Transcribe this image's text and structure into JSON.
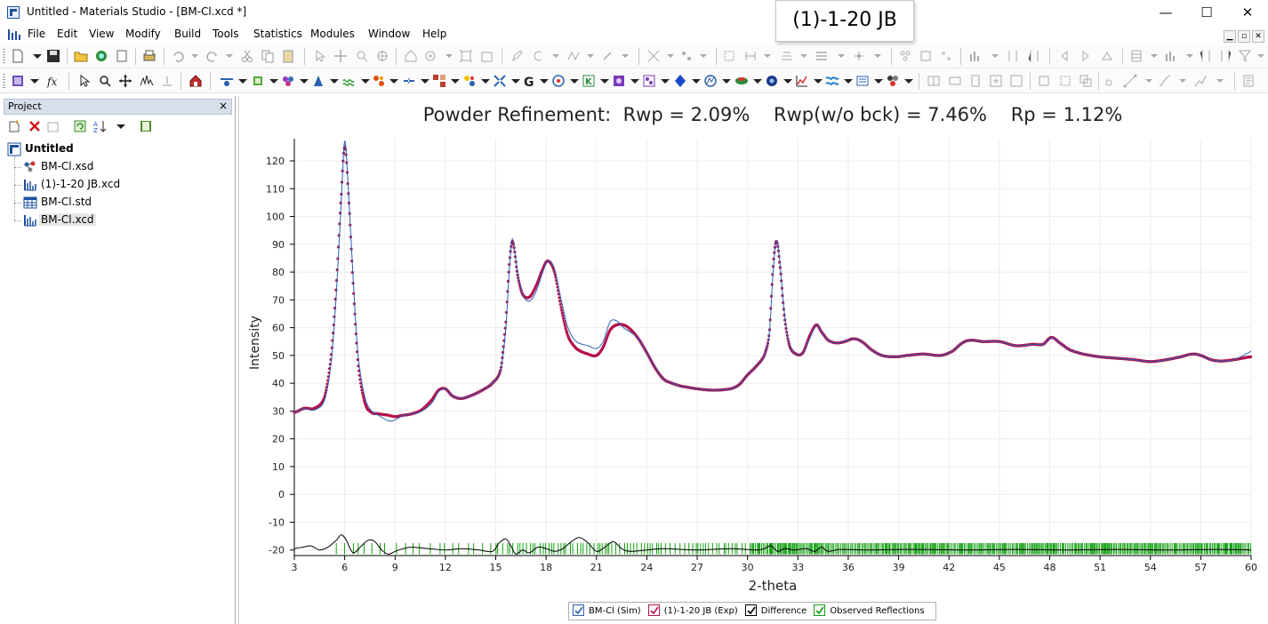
{
  "window": {
    "title": "Untitled - Materials Studio - [BM-Cl.xcd *]",
    "minimize": "—",
    "maximize": "☐",
    "close": "✕"
  },
  "tooltip": {
    "text": "(1)-1-20 JB"
  },
  "menubar": {
    "items": [
      "File",
      "Edit",
      "View",
      "Modify",
      "Build",
      "Tools",
      "Statistics",
      "Modules",
      "Window",
      "Help"
    ],
    "mdi": [
      "▁",
      "▫",
      "✕"
    ]
  },
  "project": {
    "title": "Project",
    "close": "×",
    "root": "Untitled",
    "items": [
      {
        "label": "BM-Cl.xsd",
        "icon": "molecule-icon"
      },
      {
        "label": "(1)-1-20 JB.xcd",
        "icon": "chart-doc-icon"
      },
      {
        "label": "BM-Cl.std",
        "icon": "study-table-icon"
      },
      {
        "label": "BM-Cl.xcd",
        "icon": "chart-doc-icon"
      }
    ]
  },
  "colors": {
    "sim": "#2b5fb4",
    "exp": "#b5134d",
    "difference": "#000000",
    "reflections": "#12a012",
    "grid": "#ececec"
  },
  "chart_data": {
    "type": "line",
    "title": "Powder Refinement:  Rwp = 2.09%    Rwp(w/o bck) = 7.46%    Rp = 1.12%",
    "xlabel": "2-theta",
    "ylabel": "Intensity",
    "xlim": [
      3,
      60
    ],
    "ylim": [
      -22,
      128
    ],
    "xticks": [
      3,
      6,
      9,
      12,
      15,
      18,
      21,
      24,
      27,
      30,
      33,
      36,
      39,
      42,
      45,
      48,
      51,
      54,
      57,
      60
    ],
    "yticks": [
      -20,
      -10,
      0,
      10,
      20,
      30,
      40,
      50,
      60,
      70,
      80,
      90,
      100,
      110,
      120
    ],
    "grid": true,
    "legend_position": "bottom-center",
    "series": [
      {
        "name": "BM-Cl (Sim)",
        "style": "line",
        "x": [
          3,
          3.6,
          4.2,
          4.8,
          5.2,
          5.5,
          5.8,
          6.0,
          6.2,
          6.5,
          6.8,
          7.2,
          7.6,
          8.0,
          8.6,
          9.0,
          9.5,
          10.0,
          10.6,
          11.2,
          11.6,
          12.0,
          12.4,
          12.9,
          13.5,
          14.2,
          14.8,
          15.3,
          15.6,
          15.8,
          16.0,
          16.3,
          16.6,
          17.0,
          17.4,
          17.8,
          18.1,
          18.5,
          18.9,
          19.3,
          19.8,
          20.5,
          21.0,
          21.4,
          21.8,
          22.2,
          22.6,
          23.0,
          23.5,
          24.0,
          24.5,
          25.0,
          25.5,
          26.0,
          27.0,
          28.0,
          29.0,
          29.5,
          30.0,
          30.5,
          31.0,
          31.3,
          31.5,
          31.7,
          31.9,
          32.2,
          32.5,
          32.9,
          33.3,
          33.7,
          34.1,
          34.4,
          34.8,
          35.3,
          35.8,
          36.3,
          36.8,
          37.4,
          38.0,
          38.8,
          39.5,
          40.5,
          41.5,
          42.2,
          42.8,
          43.3,
          44.0,
          45.0,
          46.0,
          47.0,
          47.6,
          48.1,
          48.6,
          49.2,
          50.0,
          51.0,
          52.0,
          53.0,
          54.0,
          55.0,
          55.8,
          56.5,
          57.0,
          57.6,
          58.2,
          59.0,
          60.0
        ],
        "y": [
          29.5,
          30.8,
          30.4,
          34.0,
          48.0,
          72.0,
          106.0,
          127.0,
          112.0,
          78.0,
          50.0,
          35.0,
          30.0,
          28.5,
          26.5,
          26.8,
          28.5,
          29.0,
          30.0,
          33.0,
          37.0,
          38.0,
          35.5,
          34.5,
          35.5,
          37.5,
          40.0,
          45.0,
          60.0,
          80.0,
          92.0,
          80.0,
          72.0,
          69.5,
          73.0,
          80.0,
          84.0,
          81.0,
          70.0,
          60.0,
          55.0,
          53.5,
          52.5,
          55.0,
          62.0,
          62.5,
          60.0,
          58.5,
          56.0,
          51.0,
          45.5,
          41.5,
          40.0,
          39.0,
          38.0,
          37.5,
          38.0,
          39.5,
          43.0,
          46.0,
          50.0,
          58.0,
          78.0,
          91.0,
          85.0,
          65.0,
          54.0,
          50.5,
          51.0,
          56.0,
          61.0,
          58.5,
          55.5,
          54.5,
          55.0,
          56.0,
          55.0,
          52.0,
          50.0,
          49.5,
          50.0,
          50.5,
          50.0,
          51.5,
          54.5,
          55.5,
          55.0,
          55.0,
          53.5,
          54.0,
          54.0,
          56.5,
          54.5,
          52.0,
          50.5,
          49.5,
          49.0,
          48.5,
          47.8,
          48.5,
          49.5,
          50.5,
          50.0,
          48.5,
          48.0,
          48.5,
          51.5
        ]
      },
      {
        "name": "(1)-1-20 JB (Exp)",
        "style": "markers",
        "x": [
          3,
          3.6,
          4.2,
          4.8,
          5.2,
          5.5,
          5.8,
          6.0,
          6.2,
          6.5,
          6.8,
          7.2,
          7.6,
          8.0,
          8.6,
          9.0,
          9.5,
          10.0,
          10.6,
          11.2,
          11.6,
          12.0,
          12.4,
          12.9,
          13.5,
          14.2,
          14.8,
          15.3,
          15.6,
          15.8,
          16.0,
          16.3,
          16.6,
          17.0,
          17.4,
          17.8,
          18.1,
          18.5,
          18.9,
          19.3,
          19.8,
          20.5,
          21.0,
          21.4,
          21.8,
          22.2,
          22.6,
          23.0,
          23.5,
          24.0,
          24.5,
          25.0,
          25.5,
          26.0,
          27.0,
          28.0,
          29.0,
          29.5,
          30.0,
          30.5,
          31.0,
          31.3,
          31.5,
          31.7,
          31.9,
          32.2,
          32.5,
          32.9,
          33.3,
          33.7,
          34.1,
          34.4,
          34.8,
          35.3,
          35.8,
          36.3,
          36.8,
          37.4,
          38.0,
          38.8,
          39.5,
          40.5,
          41.5,
          42.2,
          42.8,
          43.3,
          44.0,
          45.0,
          46.0,
          47.0,
          47.6,
          48.1,
          48.6,
          49.2,
          50.0,
          51.0,
          52.0,
          53.0,
          54.0,
          55.0,
          55.8,
          56.5,
          57.0,
          57.6,
          58.2,
          59.0,
          60.0
        ],
        "y": [
          29.5,
          31.0,
          31.0,
          35.0,
          50.0,
          75.0,
          108.0,
          125.0,
          110.0,
          76.0,
          47.0,
          33.0,
          29.5,
          29.0,
          28.5,
          28.0,
          28.5,
          29.0,
          30.5,
          34.0,
          37.5,
          38.0,
          35.5,
          34.5,
          35.5,
          37.5,
          40.0,
          45.0,
          62.0,
          82.0,
          91.0,
          79.0,
          72.0,
          71.0,
          75.0,
          81.0,
          84.0,
          80.0,
          67.0,
          57.0,
          52.5,
          50.5,
          50.0,
          53.0,
          59.0,
          61.0,
          61.0,
          59.5,
          56.0,
          51.0,
          45.5,
          41.5,
          40.0,
          39.0,
          38.0,
          37.5,
          38.0,
          39.5,
          43.0,
          46.0,
          50.0,
          58.0,
          80.0,
          91.0,
          84.0,
          64.0,
          53.5,
          50.5,
          51.0,
          57.0,
          61.0,
          58.5,
          55.5,
          54.5,
          55.0,
          56.0,
          55.0,
          52.0,
          50.0,
          49.5,
          50.0,
          50.5,
          50.0,
          51.5,
          54.5,
          55.5,
          55.0,
          55.0,
          53.5,
          54.0,
          54.0,
          56.5,
          54.5,
          52.0,
          50.5,
          49.5,
          49.0,
          48.5,
          47.8,
          48.5,
          49.5,
          50.5,
          50.0,
          48.5,
          48.0,
          48.5,
          49.5
        ]
      },
      {
        "name": "Difference",
        "style": "line",
        "x": [
          3,
          3.5,
          4.0,
          4.5,
          5.0,
          5.5,
          5.8,
          6.1,
          6.5,
          7.0,
          7.4,
          7.8,
          8.2,
          8.6,
          9.0,
          9.5,
          10.0,
          11.0,
          12.0,
          13.0,
          14.0,
          14.8,
          15.2,
          15.6,
          15.9,
          16.2,
          16.6,
          17.0,
          17.5,
          18.0,
          18.5,
          19.0,
          19.5,
          20.0,
          20.5,
          21.0,
          21.5,
          22.0,
          22.5,
          23.0,
          24.0,
          25.0,
          27.0,
          29.0,
          30.5,
          31.0,
          31.4,
          31.8,
          32.2,
          32.8,
          33.5,
          34.0,
          34.4,
          34.8,
          35.5,
          37.0,
          40.0,
          43.0,
          46.0,
          49.0,
          52.0,
          55.0,
          58.0,
          60.0
        ],
        "y": [
          -19.5,
          -19.0,
          -18.5,
          -20.0,
          -19.0,
          -16.5,
          -14.5,
          -16.5,
          -21.0,
          -18.5,
          -16.5,
          -17.0,
          -20.0,
          -21.5,
          -20.5,
          -19.5,
          -19.0,
          -19.5,
          -20.0,
          -19.5,
          -20.0,
          -20.5,
          -17.5,
          -16.0,
          -18.5,
          -21.5,
          -20.0,
          -21.0,
          -19.0,
          -19.5,
          -20.5,
          -19.5,
          -17.0,
          -15.5,
          -17.5,
          -20.5,
          -19.0,
          -17.0,
          -19.5,
          -20.5,
          -20.0,
          -19.5,
          -20.0,
          -19.5,
          -20.0,
          -19.5,
          -18.5,
          -20.5,
          -19.5,
          -20.0,
          -19.5,
          -20.5,
          -19.0,
          -20.5,
          -19.8,
          -20.0,
          -19.8,
          -20.0,
          -19.8,
          -20.0,
          -19.8,
          -20.0,
          -19.8,
          -20.0
        ]
      },
      {
        "name": "Observed Reflections",
        "style": "ticks",
        "range": [
          5.5,
          60
        ],
        "ymin": -21.5,
        "ymax": -17.5
      }
    ],
    "legend": [
      {
        "label": "BM-Cl (Sim)",
        "color": "#2b5fb4"
      },
      {
        "label": "(1)-1-20 JB (Exp)",
        "color": "#b5134d"
      },
      {
        "label": "Difference",
        "color": "#000000"
      },
      {
        "label": "Observed Reflections",
        "color": "#12a012"
      }
    ]
  }
}
